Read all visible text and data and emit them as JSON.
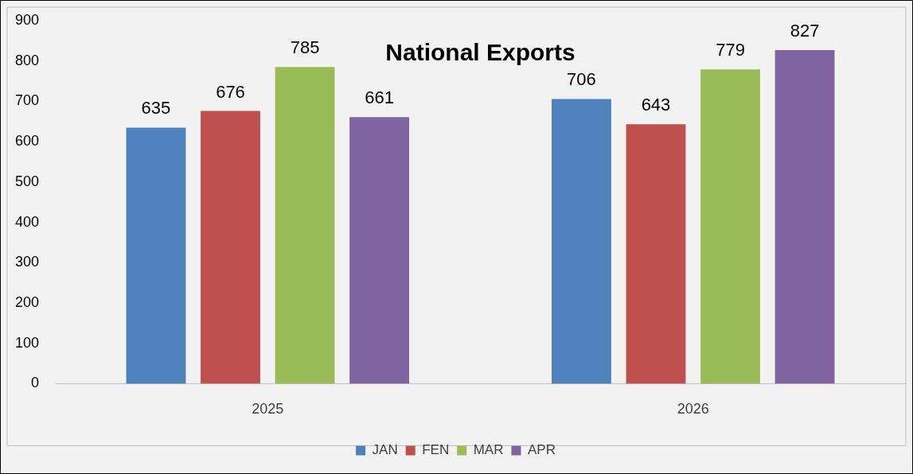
{
  "chart_data": {
    "type": "bar",
    "title": "National Exports",
    "categories": [
      "2025",
      "2026"
    ],
    "series": [
      {
        "name": "JAN",
        "color": "#4f81bd",
        "values": [
          635,
          706
        ]
      },
      {
        "name": "FEN",
        "color": "#c0504d",
        "values": [
          676,
          643
        ]
      },
      {
        "name": "MAR",
        "color": "#9bbb59",
        "values": [
          785,
          779
        ]
      },
      {
        "name": "APR",
        "color": "#8064a2",
        "values": [
          661,
          827
        ]
      }
    ],
    "ylim": [
      0,
      900
    ],
    "yticks": [
      0,
      100,
      200,
      300,
      400,
      500,
      600,
      700,
      800,
      900
    ],
    "grid": false,
    "legend": "bottom",
    "data_labels": true
  }
}
